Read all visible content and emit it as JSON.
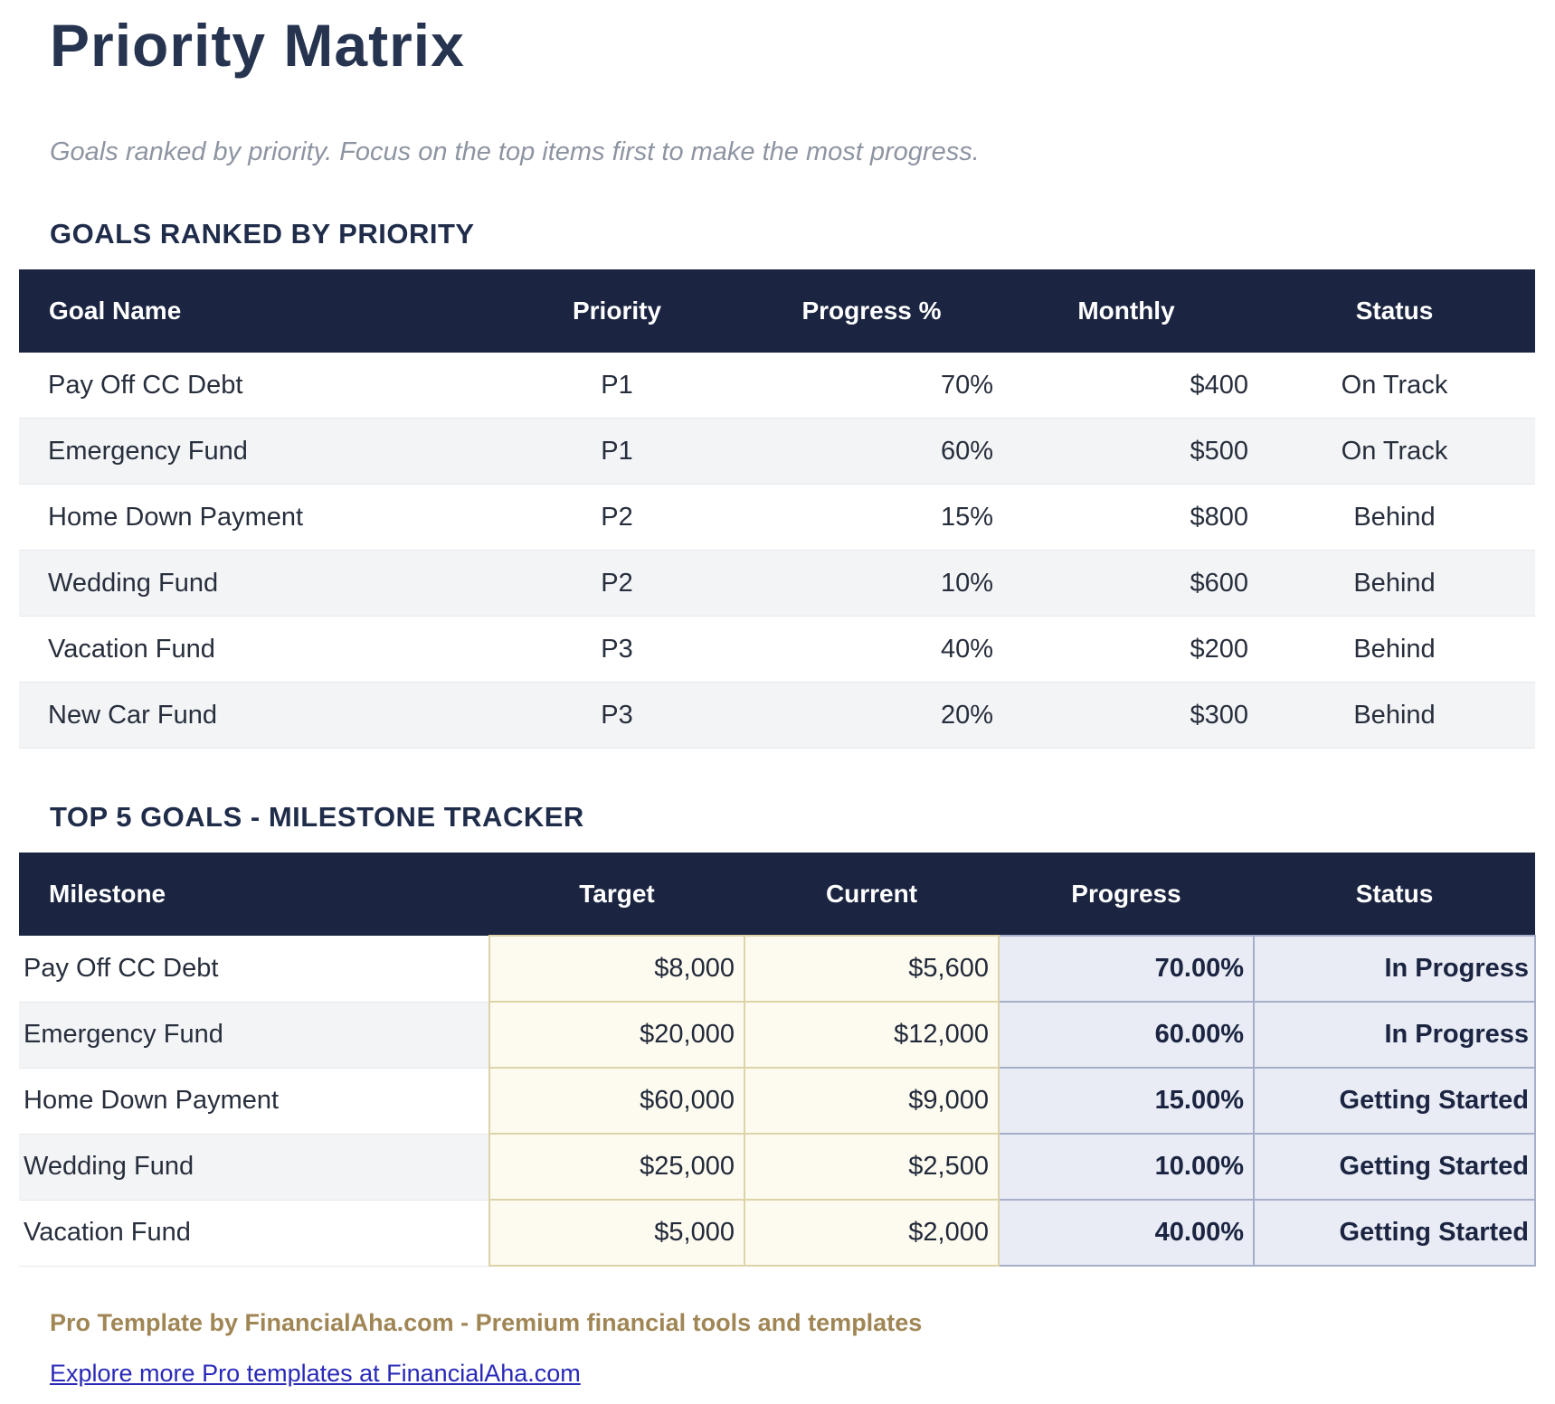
{
  "page": {
    "title": "Priority Matrix",
    "subtitle": "Goals ranked by priority. Focus on the top items first to make the most progress."
  },
  "colors": {
    "header_navy": "#1b2541",
    "title_navy": "#263450",
    "stripe_gray": "#f3f4f6",
    "cream_cell": "#fdfbef",
    "cream_border": "#ddd3a9",
    "periwinkle_cell": "#e9ecf5",
    "periwinkle_border": "#a6aec9",
    "promo_gold": "#a08655",
    "link_blue": "#2929b8"
  },
  "priority_table": {
    "heading": "GOALS RANKED BY PRIORITY",
    "columns": [
      "Goal Name",
      "Priority",
      "Progress %",
      "Monthly",
      "Status"
    ],
    "rows": [
      {
        "goal": "Pay Off CC Debt",
        "priority": "P1",
        "progress": "70%",
        "monthly": "$400",
        "status": "On Track"
      },
      {
        "goal": "Emergency Fund",
        "priority": "P1",
        "progress": "60%",
        "monthly": "$500",
        "status": "On Track"
      },
      {
        "goal": "Home Down Payment",
        "priority": "P2",
        "progress": "15%",
        "monthly": "$800",
        "status": "Behind"
      },
      {
        "goal": "Wedding Fund",
        "priority": "P2",
        "progress": "10%",
        "monthly": "$600",
        "status": "Behind"
      },
      {
        "goal": "Vacation Fund",
        "priority": "P3",
        "progress": "40%",
        "monthly": "$200",
        "status": "Behind"
      },
      {
        "goal": "New Car Fund",
        "priority": "P3",
        "progress": "20%",
        "monthly": "$300",
        "status": "Behind"
      }
    ]
  },
  "milestone_table": {
    "heading": "TOP 5 GOALS - MILESTONE TRACKER",
    "columns": [
      "Milestone",
      "Target",
      "Current",
      "Progress",
      "Status"
    ],
    "rows": [
      {
        "milestone": "Pay Off CC Debt",
        "target": "$8,000",
        "current": "$5,600",
        "progress": "70.00%",
        "status": "In Progress"
      },
      {
        "milestone": "Emergency Fund",
        "target": "$20,000",
        "current": "$12,000",
        "progress": "60.00%",
        "status": "In Progress"
      },
      {
        "milestone": "Home Down Payment",
        "target": "$60,000",
        "current": "$9,000",
        "progress": "15.00%",
        "status": "Getting Started"
      },
      {
        "milestone": "Wedding Fund",
        "target": "$25,000",
        "current": "$2,500",
        "progress": "10.00%",
        "status": "Getting Started"
      },
      {
        "milestone": "Vacation Fund",
        "target": "$5,000",
        "current": "$2,000",
        "progress": "40.00%",
        "status": "Getting Started"
      }
    ]
  },
  "footer": {
    "promo": "Pro Template by FinancialAha.com - Premium financial tools and templates",
    "link": "Explore more Pro templates at FinancialAha.com"
  }
}
